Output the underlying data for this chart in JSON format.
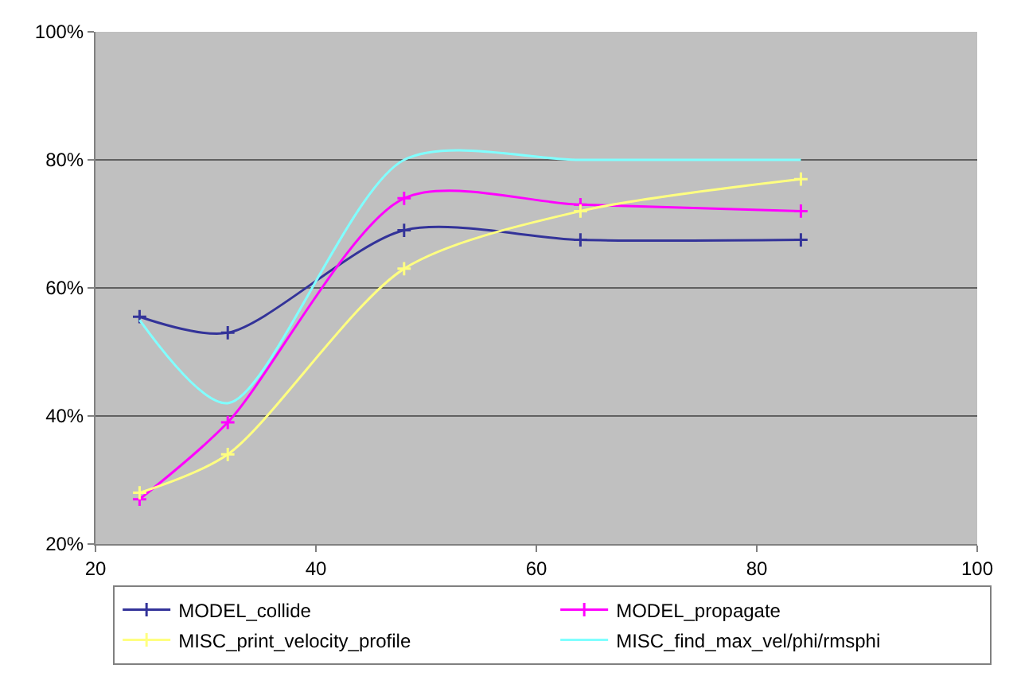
{
  "chart_data": {
    "type": "line",
    "x": [
      24,
      32,
      48,
      64,
      84
    ],
    "series": [
      {
        "name": "MODEL_collide",
        "color": "#333399",
        "values": [
          55.5,
          53,
          69,
          67.5,
          67.5
        ],
        "marker": "cross"
      },
      {
        "name": "MODEL_propagate",
        "color": "#ff00ff",
        "values": [
          27,
          39,
          74,
          73,
          72
        ],
        "marker": "cross"
      },
      {
        "name": "MISC_print_velocity_profile",
        "color": "#ffff80",
        "values": [
          28,
          34,
          63,
          72,
          77
        ],
        "marker": "cross"
      },
      {
        "name": "MISC_find_max_vel/phi/rmsphi",
        "color": "#80ffff",
        "values": [
          55,
          42,
          80,
          80,
          80
        ],
        "marker": "none"
      }
    ],
    "xlim": [
      20,
      100
    ],
    "xticks": [
      20,
      40,
      60,
      80,
      100
    ],
    "ylim": [
      20,
      100
    ],
    "yticks": [
      {
        "value": 20,
        "label": "20%"
      },
      {
        "value": 40,
        "label": "40%"
      },
      {
        "value": 60,
        "label": "60%"
      },
      {
        "value": 80,
        "label": "80%"
      },
      {
        "value": 100,
        "label": "100%"
      }
    ],
    "grid": "y",
    "legend": "bottom"
  }
}
